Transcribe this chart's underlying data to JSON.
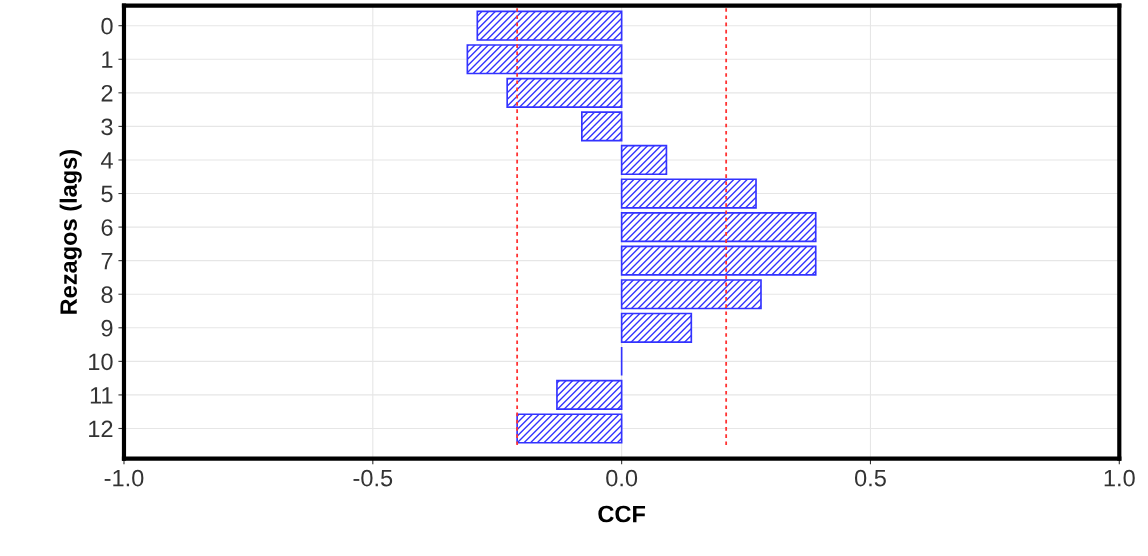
{
  "chart_data": {
    "type": "bar",
    "orientation": "horizontal",
    "xlabel": "CCF",
    "ylabel": "Rezagos (lags)",
    "categories": [
      "0",
      "1",
      "2",
      "3",
      "4",
      "5",
      "6",
      "7",
      "8",
      "9",
      "10",
      "11",
      "12"
    ],
    "values": [
      -0.29,
      -0.31,
      -0.23,
      -0.08,
      0.09,
      0.27,
      0.39,
      0.39,
      0.28,
      0.14,
      0.0,
      -0.13,
      -0.21
    ],
    "color": "#3333ff",
    "xlim": [
      -1.0,
      1.0
    ],
    "xticks": [
      {
        "value": -1.0,
        "label": "-1.0"
      },
      {
        "value": -0.5,
        "label": "-0.5"
      },
      {
        "value": 0.0,
        "label": "0.0"
      },
      {
        "value": 0.5,
        "label": "0.5"
      },
      {
        "value": 1.0,
        "label": "1.0"
      }
    ],
    "ref_lines": [
      {
        "axis": "x",
        "value": -0.21,
        "color": "#ff3333",
        "line_style": "dotted"
      },
      {
        "axis": "x",
        "value": 0.21,
        "color": "#ff3333",
        "line_style": "dotted"
      }
    ],
    "grid": true
  }
}
